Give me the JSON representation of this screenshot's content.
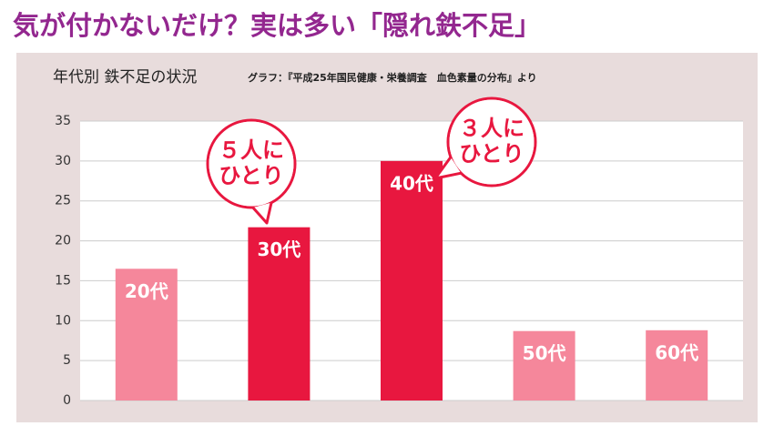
{
  "chart_data": {
    "type": "bar",
    "title": "気が付かないだけ？実は多い「隠れ鉄不足」",
    "subtitle": "年代別 鉄不足の状況",
    "source": "グラフ：『平成25年国民健康・栄養調査　血色素量の分布』より",
    "categories": [
      "20代",
      "30代",
      "40代",
      "50代",
      "60代"
    ],
    "values": [
      16.5,
      21.7,
      30,
      8.7,
      8.8
    ],
    "colors": [
      "#f5879b",
      "#e8173f",
      "#e8173f",
      "#f5879b",
      "#f5879b"
    ],
    "ylim": [
      0,
      35
    ],
    "yticks": [
      0,
      5,
      10,
      15,
      20,
      25,
      30,
      35
    ],
    "grid": true,
    "annotations": [
      {
        "lines": [
          "５人に",
          "ひとり"
        ]
      },
      {
        "lines": [
          "３人に",
          "ひとり"
        ]
      }
    ]
  }
}
